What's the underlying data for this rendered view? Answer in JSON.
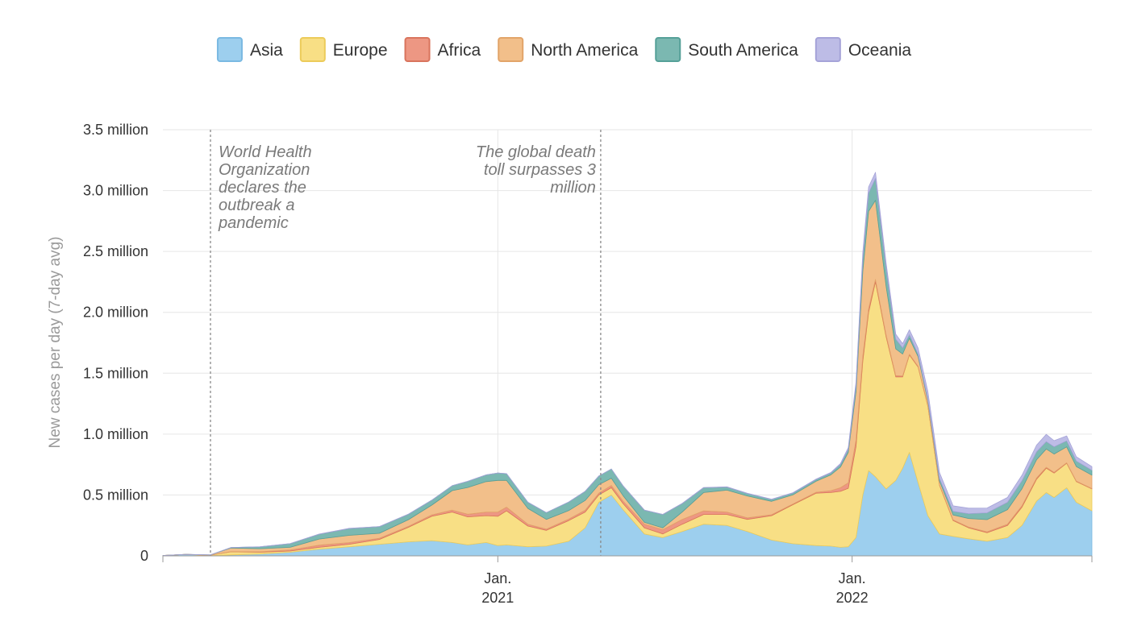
{
  "chart_data": {
    "type": "area",
    "stacked": true,
    "title": "",
    "xlabel": "",
    "ylabel": "New cases per day (7-day avg)",
    "ylim": [
      0,
      3500000
    ],
    "grid": true,
    "legend_position": "top-center",
    "y_ticks": [
      {
        "value": 0,
        "label": "0"
      },
      {
        "value": 500000,
        "label": "0.5 million"
      },
      {
        "value": 1000000,
        "label": "1.0 million"
      },
      {
        "value": 1500000,
        "label": "1.5 million"
      },
      {
        "value": 2000000,
        "label": "2.0 million"
      },
      {
        "value": 2500000,
        "label": "2.5 million"
      },
      {
        "value": 3000000,
        "label": "3.0 million"
      },
      {
        "value": 3500000,
        "label": "3.5 million"
      }
    ],
    "x_range": [
      "2020-01-22",
      "2022-09-05"
    ],
    "x_ticks": [
      {
        "date": "2021-01-01",
        "line1": "Jan.",
        "line2": "2021"
      },
      {
        "date": "2022-01-01",
        "line1": "Jan.",
        "line2": "2022"
      }
    ],
    "annotations": [
      {
        "date": "2020-03-11",
        "lines": [
          "World Health",
          "Organization",
          "declares the",
          "outbreak a",
          "pandemic"
        ],
        "align": "left"
      },
      {
        "date": "2021-04-17",
        "lines": [
          "The global death",
          "toll surpasses 3",
          "million"
        ],
        "align": "right"
      }
    ],
    "dates": [
      "2020-01-22",
      "2020-02-15",
      "2020-03-11",
      "2020-04-01",
      "2020-05-01",
      "2020-06-01",
      "2020-07-01",
      "2020-08-01",
      "2020-09-01",
      "2020-10-01",
      "2020-10-25",
      "2020-11-15",
      "2020-12-01",
      "2020-12-20",
      "2021-01-01",
      "2021-01-10",
      "2021-02-01",
      "2021-02-20",
      "2021-03-15",
      "2021-04-01",
      "2021-04-15",
      "2021-04-28",
      "2021-05-10",
      "2021-06-01",
      "2021-06-20",
      "2021-07-10",
      "2021-08-01",
      "2021-08-25",
      "2021-09-15",
      "2021-10-10",
      "2021-11-01",
      "2021-11-25",
      "2021-12-10",
      "2021-12-20",
      "2021-12-28",
      "2022-01-05",
      "2022-01-12",
      "2022-01-18",
      "2022-01-25",
      "2022-02-05",
      "2022-02-15",
      "2022-02-22",
      "2022-03-01",
      "2022-03-10",
      "2022-03-20",
      "2022-04-01",
      "2022-04-15",
      "2022-05-01",
      "2022-05-20",
      "2022-06-10",
      "2022-06-25",
      "2022-07-10",
      "2022-07-20",
      "2022-07-28",
      "2022-08-10",
      "2022-08-20",
      "2022-09-05"
    ],
    "series": [
      {
        "name": "Asia",
        "color": "#9dcfee",
        "stroke": "#7ab9e2",
        "values": [
          3000,
          12000,
          1000,
          8000,
          15000,
          30000,
          55000,
          75000,
          95000,
          115000,
          125000,
          110000,
          90000,
          110000,
          85000,
          90000,
          75000,
          80000,
          120000,
          230000,
          440000,
          500000,
          380000,
          180000,
          150000,
          200000,
          260000,
          250000,
          200000,
          130000,
          100000,
          85000,
          80000,
          70000,
          75000,
          150000,
          500000,
          700000,
          650000,
          550000,
          620000,
          720000,
          850000,
          600000,
          330000,
          180000,
          160000,
          140000,
          120000,
          150000,
          250000,
          450000,
          520000,
          480000,
          560000,
          440000,
          370000
        ]
      },
      {
        "name": "Europe",
        "color": "#f8df85",
        "stroke": "#eccb5a",
        "values": [
          0,
          0,
          5000,
          25000,
          15000,
          10000,
          15000,
          20000,
          40000,
          120000,
          200000,
          250000,
          230000,
          220000,
          240000,
          280000,
          170000,
          130000,
          170000,
          130000,
          60000,
          60000,
          50000,
          50000,
          30000,
          60000,
          80000,
          90000,
          100000,
          200000,
          320000,
          430000,
          440000,
          460000,
          480000,
          750000,
          1100000,
          1300000,
          1600000,
          1250000,
          850000,
          750000,
          800000,
          950000,
          900000,
          400000,
          130000,
          90000,
          70000,
          100000,
          150000,
          180000,
          200000,
          200000,
          200000,
          170000,
          180000
        ]
      },
      {
        "name": "Africa",
        "color": "#ed9783",
        "stroke": "#d9745d",
        "values": [
          0,
          0,
          0,
          2000,
          4000,
          8000,
          18000,
          14000,
          10000,
          8000,
          12000,
          16000,
          22000,
          30000,
          35000,
          30000,
          15000,
          10000,
          12000,
          15000,
          15000,
          18000,
          20000,
          30000,
          35000,
          40000,
          30000,
          20000,
          12000,
          8000,
          6000,
          8000,
          15000,
          30000,
          45000,
          50000,
          40000,
          30000,
          20000,
          15000,
          10000,
          8000,
          7000,
          6000,
          5000,
          5000,
          6000,
          7000,
          8000,
          10000,
          12000,
          10000,
          8000,
          6000,
          5000,
          4000,
          3000
        ]
      },
      {
        "name": "North America",
        "color": "#f2bf8a",
        "stroke": "#e2a469",
        "values": [
          0,
          0,
          2000,
          30000,
          25000,
          22000,
          50000,
          60000,
          40000,
          55000,
          80000,
          160000,
          220000,
          250000,
          260000,
          220000,
          130000,
          80000,
          70000,
          80000,
          70000,
          60000,
          45000,
          15000,
          15000,
          60000,
          150000,
          180000,
          180000,
          110000,
          75000,
          90000,
          130000,
          170000,
          250000,
          400000,
          700000,
          800000,
          650000,
          400000,
          220000,
          180000,
          130000,
          80000,
          40000,
          30000,
          40000,
          70000,
          100000,
          120000,
          140000,
          150000,
          150000,
          150000,
          130000,
          120000,
          110000
        ]
      },
      {
        "name": "South America",
        "color": "#7bb8b1",
        "stroke": "#55a098",
        "values": [
          0,
          0,
          0,
          3000,
          15000,
          30000,
          40000,
          55000,
          55000,
          45000,
          40000,
          40000,
          50000,
          55000,
          60000,
          55000,
          50000,
          55000,
          70000,
          75000,
          70000,
          75000,
          80000,
          100000,
          110000,
          70000,
          40000,
          25000,
          20000,
          15000,
          15000,
          15000,
          15000,
          20000,
          25000,
          50000,
          100000,
          150000,
          180000,
          150000,
          80000,
          50000,
          30000,
          20000,
          15000,
          20000,
          30000,
          40000,
          55000,
          60000,
          65000,
          65000,
          60000,
          60000,
          50000,
          45000,
          40000
        ]
      },
      {
        "name": "Oceania",
        "color": "#bdbce6",
        "stroke": "#a5a3d8",
        "values": [
          0,
          0,
          0,
          1000,
          500,
          500,
          1000,
          2000,
          1000,
          500,
          500,
          500,
          500,
          500,
          500,
          500,
          500,
          500,
          500,
          500,
          500,
          500,
          500,
          500,
          1000,
          1500,
          2000,
          2000,
          2000,
          3000,
          3000,
          3000,
          5000,
          8000,
          15000,
          30000,
          50000,
          50000,
          50000,
          40000,
          40000,
          35000,
          40000,
          50000,
          60000,
          50000,
          45000,
          45000,
          40000,
          40000,
          45000,
          55000,
          60000,
          50000,
          40000,
          35000,
          30000
        ]
      }
    ]
  }
}
